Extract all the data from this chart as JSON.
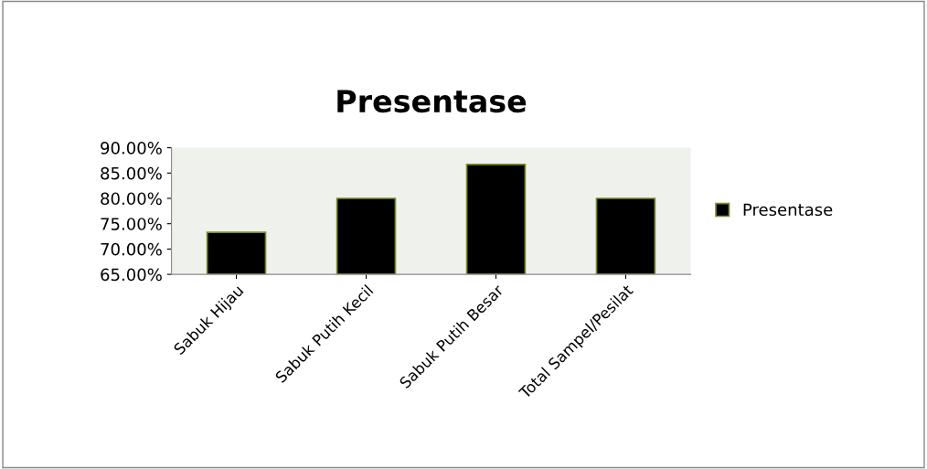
{
  "chart_data": {
    "type": "bar",
    "title": "Presentase",
    "categories": [
      "Sabuk Hijau",
      "Sabuk Putih Kecil",
      "Sabuk Putih Besar",
      "Total Sampel/Pesilat"
    ],
    "series": [
      {
        "name": "Presentase",
        "color": "#000000",
        "values": [
          73.3,
          80.0,
          86.7,
          80.0
        ]
      }
    ],
    "ylim": [
      65,
      90
    ],
    "yticks": [
      {
        "value": 65,
        "label": "65.00%"
      },
      {
        "value": 70,
        "label": "70.00%"
      },
      {
        "value": 75,
        "label": "75.00%"
      },
      {
        "value": 80,
        "label": "80.00%"
      },
      {
        "value": 85,
        "label": "85.00%"
      },
      {
        "value": 90,
        "label": "90.00%"
      }
    ],
    "grid": false,
    "legend": "right"
  }
}
